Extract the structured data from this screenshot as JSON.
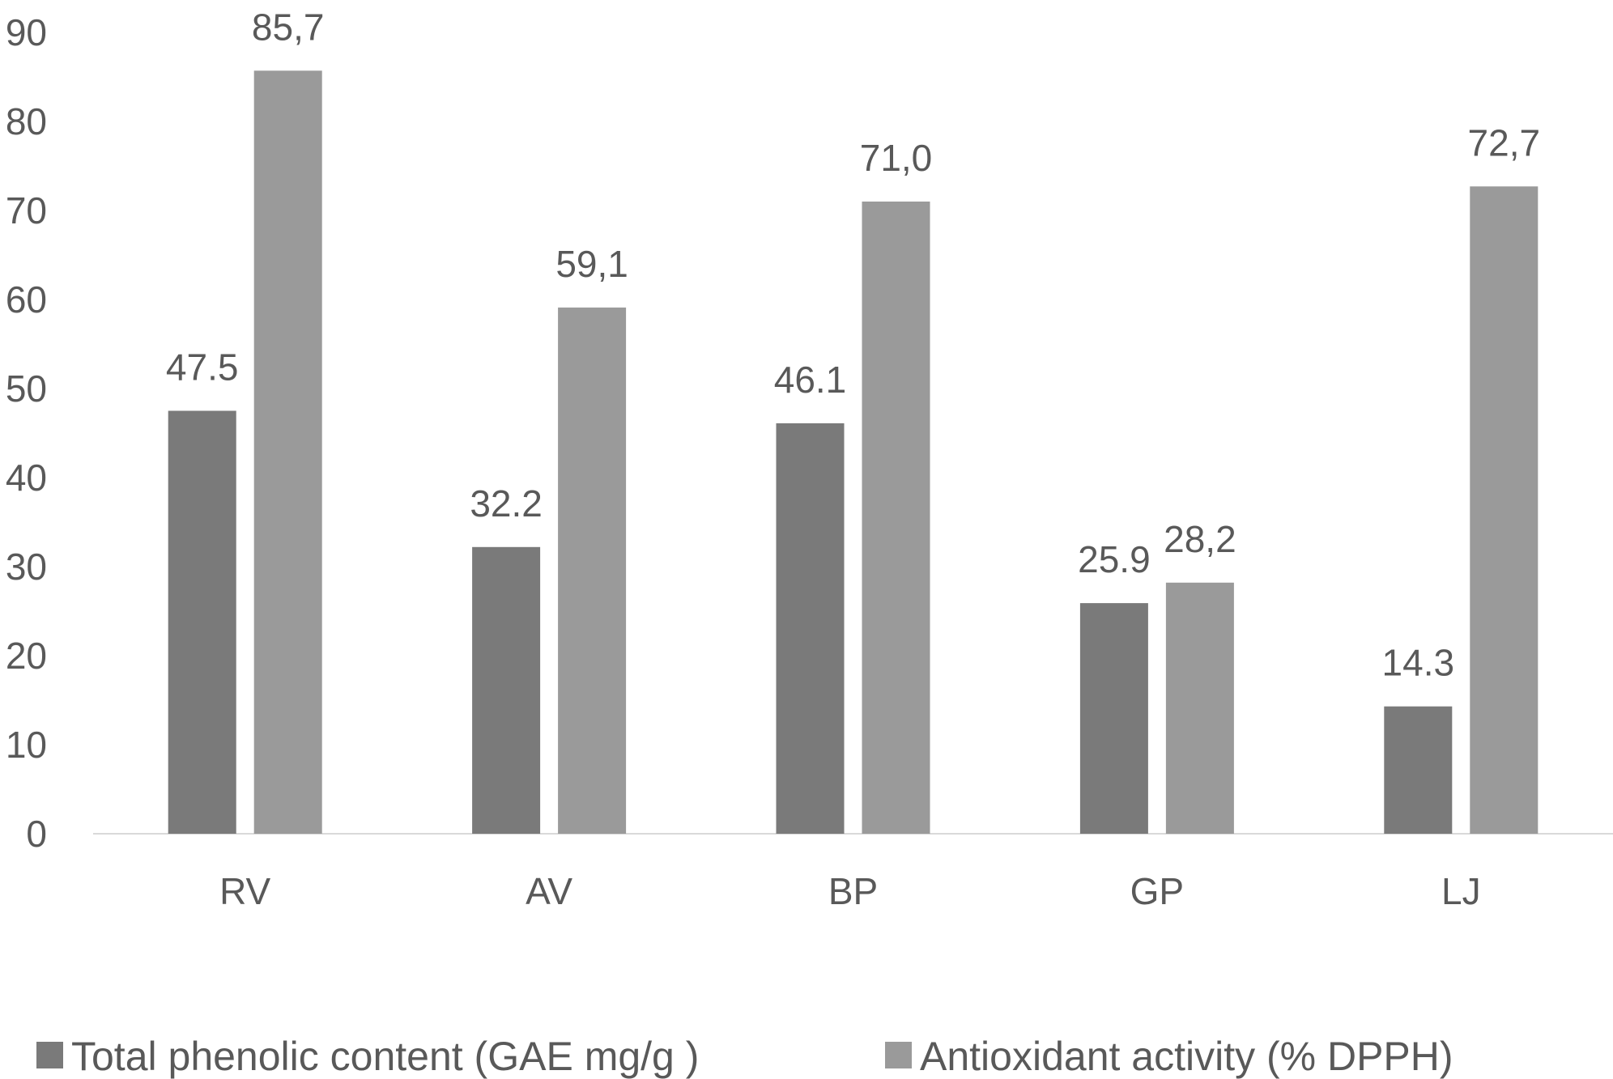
{
  "chart_data": {
    "type": "bar",
    "title": "",
    "xlabel": "",
    "ylabel": "",
    "ylim": [
      0,
      90
    ],
    "yticks": [
      0,
      10,
      20,
      30,
      40,
      50,
      60,
      70,
      80,
      90
    ],
    "grid": false,
    "legend_position": "bottom",
    "categories": [
      "RV",
      "AV",
      "BP",
      "GP",
      "LJ"
    ],
    "series": [
      {
        "name": "Total phenolic content (GAE mg/g )",
        "color": "#7a7a7a",
        "values": [
          47.5,
          32.2,
          46.1,
          25.9,
          14.3
        ],
        "labels": [
          "47.5",
          "32.2",
          "46.1",
          "25.9",
          "14.3"
        ]
      },
      {
        "name": "Antioxidant activity (% DPPH)",
        "color": "#9a9a9a",
        "values": [
          85.7,
          59.1,
          71.0,
          28.2,
          72.7
        ],
        "labels": [
          "85,7",
          "59,1",
          "71,0",
          "28,2",
          "72,7"
        ]
      }
    ]
  }
}
